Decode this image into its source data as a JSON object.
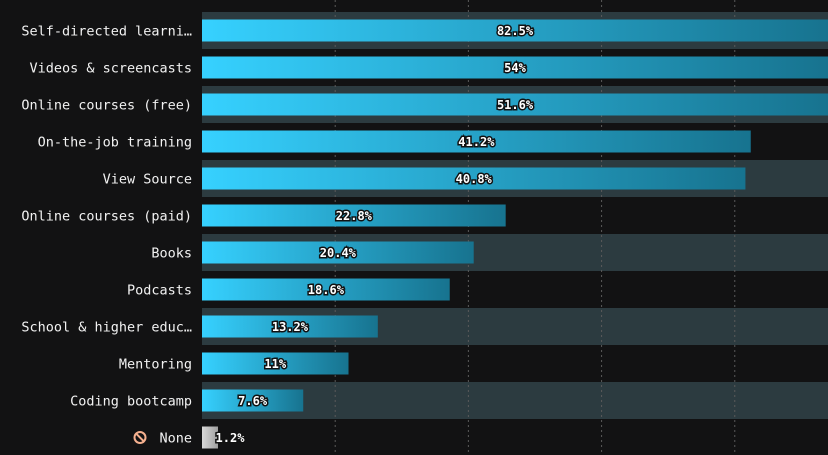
{
  "chart_data": {
    "type": "bar",
    "orientation": "horizontal",
    "categories": [
      "Self-directed learni…",
      "Videos & screencasts",
      "Online courses (free)",
      "On-the-job training",
      "View Source",
      "Online courses (paid)",
      "Books",
      "Podcasts",
      "School & higher educ…",
      "Mentoring",
      "Coding bootcamp",
      "None"
    ],
    "values": [
      82.5,
      54,
      51.6,
      41.2,
      40.8,
      22.8,
      20.4,
      18.6,
      13.2,
      11,
      7.6,
      1.2
    ],
    "value_labels": [
      "82.5%",
      "54%",
      "51.6%",
      "41.2%",
      "40.8%",
      "22.8%",
      "20.4%",
      "18.6%",
      "13.2%",
      "11%",
      "7.6%",
      "1.2%"
    ],
    "xlim": [
      0,
      47
    ],
    "grid": true,
    "title": "",
    "xlabel": "",
    "ylabel": "",
    "colors": {
      "background": "#121213",
      "band": "#2c3b40",
      "bar_start": "#36d1ff",
      "bar_end": "#17738f",
      "none_bar": "#a0a0a0",
      "none_icon": "#f5b08f",
      "gridline": "#5a5a5a",
      "text": "#f2f2f2"
    },
    "none_icon": "prohibited-icon"
  }
}
